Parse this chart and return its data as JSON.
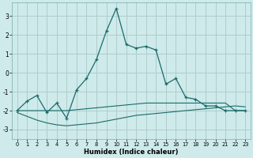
{
  "xlabel": "Humidex (Indice chaleur)",
  "bg_color": "#ceeaea",
  "grid_color": "#b0cccc",
  "line_color": "#1a6b6b",
  "xlim": [
    -0.5,
    23.5
  ],
  "ylim": [
    -3.5,
    3.7
  ],
  "yticks": [
    -3,
    -2,
    -1,
    0,
    1,
    2,
    3
  ],
  "xticks": [
    0,
    1,
    2,
    3,
    4,
    5,
    6,
    7,
    8,
    9,
    10,
    11,
    12,
    13,
    14,
    15,
    16,
    17,
    18,
    19,
    20,
    21,
    22,
    23
  ],
  "series1_x": [
    0,
    1,
    2,
    3,
    4,
    5,
    6,
    7,
    8,
    9,
    10,
    11,
    12,
    13,
    14,
    15,
    16,
    17,
    18,
    19,
    20,
    21,
    22,
    23
  ],
  "series1_y": [
    -2.0,
    -1.5,
    -1.2,
    -2.1,
    -1.6,
    -2.4,
    -0.9,
    -0.3,
    0.7,
    2.2,
    3.4,
    1.5,
    1.3,
    1.4,
    1.2,
    -0.6,
    -0.3,
    -1.3,
    -1.4,
    -1.75,
    -1.75,
    -2.0,
    -2.0,
    -2.0
  ],
  "series2_x": [
    0,
    1,
    2,
    3,
    4,
    5,
    6,
    7,
    8,
    9,
    10,
    11,
    12,
    13,
    14,
    15,
    16,
    17,
    18,
    19,
    20,
    21,
    22,
    23
  ],
  "series2_y": [
    -2.0,
    -2.0,
    -2.0,
    -2.0,
    -2.0,
    -2.0,
    -1.95,
    -1.9,
    -1.85,
    -1.8,
    -1.75,
    -1.7,
    -1.65,
    -1.6,
    -1.6,
    -1.6,
    -1.6,
    -1.6,
    -1.6,
    -1.6,
    -1.6,
    -1.6,
    -2.0,
    -2.0
  ],
  "series3_x": [
    0,
    1,
    2,
    3,
    4,
    5,
    6,
    7,
    8,
    9,
    10,
    11,
    12,
    13,
    14,
    15,
    16,
    17,
    18,
    19,
    20,
    21,
    22,
    23
  ],
  "series3_y": [
    -2.1,
    -2.3,
    -2.5,
    -2.65,
    -2.75,
    -2.8,
    -2.75,
    -2.7,
    -2.65,
    -2.55,
    -2.45,
    -2.35,
    -2.25,
    -2.2,
    -2.15,
    -2.1,
    -2.05,
    -2.0,
    -1.95,
    -1.9,
    -1.85,
    -1.8,
    -1.75,
    -1.8
  ]
}
